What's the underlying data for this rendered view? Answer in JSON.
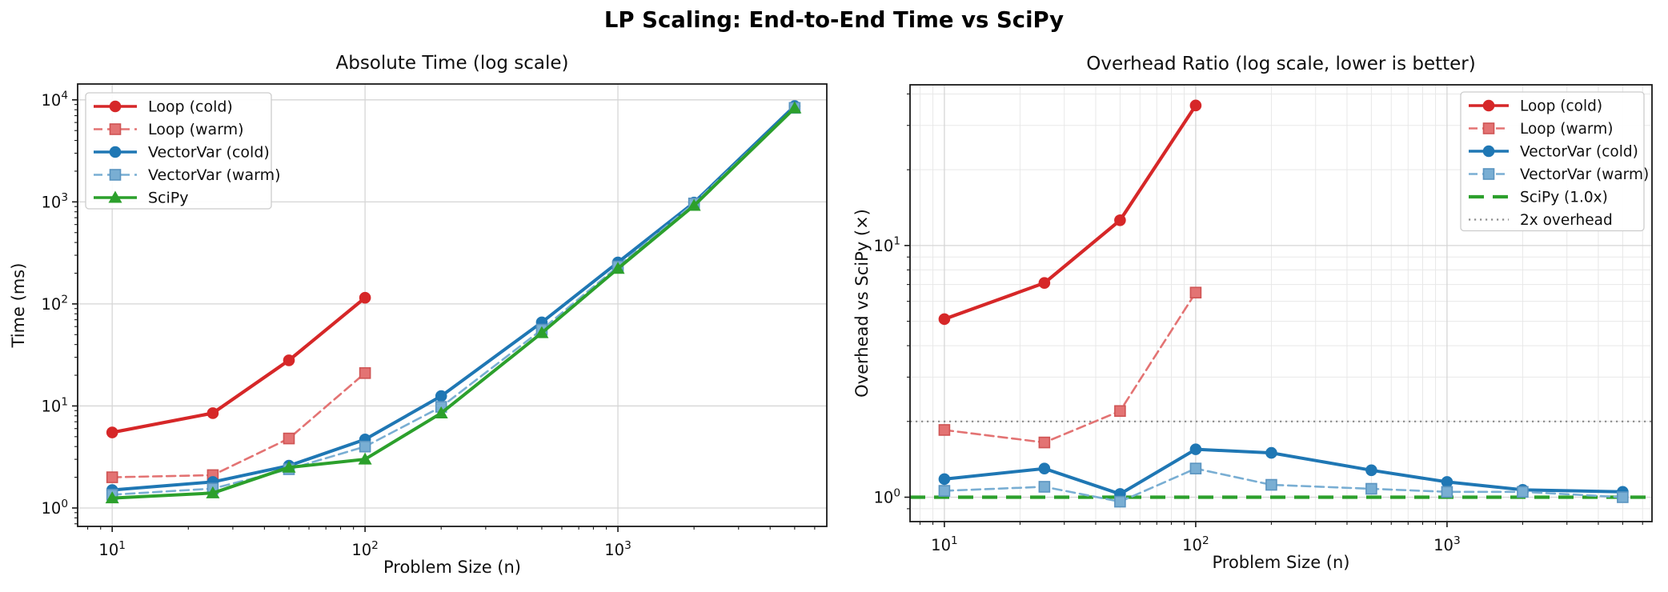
{
  "figure": {
    "title": "LP Scaling: End-to-End Time vs SciPy"
  },
  "palette": {
    "loop_cold": "#d62728",
    "loop_warm": "#e37373",
    "loop_warm_edge": "#cf5454",
    "vector_cold": "#1f77b4",
    "vector_warm": "#79aed3",
    "vector_warm_edge": "#5a94c0",
    "scipy_green": "#2ca02c",
    "ref_gray": "#8c8c8c",
    "grid_major": "#d6d6d6",
    "grid_minor": "#e8e8e8",
    "axis_color": "#1a1a1a",
    "text_color": "#0f0f0f",
    "legend_border": "#cccccc",
    "background": "#ffffff"
  },
  "chart_data": [
    {
      "type": "line",
      "title": "Absolute Time (log scale)",
      "xlabel": "Problem Size (n)",
      "ylabel": "Time (ms)",
      "xscale": "log",
      "yscale": "log",
      "xlim": [
        7.3,
        6700
      ],
      "ylim": [
        0.66,
        14300
      ],
      "xticks": [
        10,
        100,
        1000
      ],
      "yticks": [
        1,
        10,
        100,
        1000,
        10000
      ],
      "grid": "major",
      "legend_position": "upper-left",
      "series": [
        {
          "name": "Loop (cold)",
          "color": "loop_cold",
          "line": "solid",
          "marker": "circle",
          "width": 4.2,
          "x": [
            10,
            25,
            50,
            100
          ],
          "y": [
            5.5,
            8.5,
            28,
            115
          ]
        },
        {
          "name": "Loop (warm)",
          "color": "loop_warm",
          "edge": "loop_warm_edge",
          "line": "dashed",
          "marker": "square",
          "width": 2.6,
          "x": [
            10,
            25,
            50,
            100
          ],
          "y": [
            2.0,
            2.1,
            4.8,
            21
          ]
        },
        {
          "name": "VectorVar (cold)",
          "color": "vector_cold",
          "line": "solid",
          "marker": "circle",
          "width": 4.0,
          "x": [
            10,
            25,
            50,
            100,
            200,
            500,
            1000,
            2000,
            5000
          ],
          "y": [
            1.5,
            1.8,
            2.6,
            4.7,
            12.5,
            66,
            255,
            985,
            8700
          ]
        },
        {
          "name": "VectorVar (warm)",
          "color": "vector_warm",
          "edge": "vector_warm_edge",
          "line": "dashed",
          "marker": "square",
          "width": 2.6,
          "x": [
            10,
            25,
            50,
            100,
            200,
            500,
            1000,
            2000,
            5000
          ],
          "y": [
            1.35,
            1.55,
            2.4,
            4.0,
            9.8,
            56,
            233,
            965,
            8350
          ]
        },
        {
          "name": "SciPy",
          "color": "scipy_green",
          "line": "solid",
          "marker": "triangle",
          "width": 4.0,
          "x": [
            10,
            25,
            50,
            100,
            200,
            500,
            1000,
            2000,
            5000
          ],
          "y": [
            1.25,
            1.4,
            2.5,
            3.0,
            8.5,
            52,
            222,
            920,
            8300
          ]
        }
      ]
    },
    {
      "type": "line",
      "title": "Overhead Ratio (log scale, lower is better)",
      "xlabel": "Problem Size (n)",
      "ylabel": "Overhead vs SciPy (×)",
      "xscale": "log",
      "yscale": "log",
      "xlim": [
        7.3,
        6540
      ],
      "ylim": [
        0.8,
        43.5
      ],
      "xticks": [
        10,
        100,
        1000
      ],
      "yticks": [
        1,
        10
      ],
      "grid": "both",
      "legend_position": "upper-right",
      "series": [
        {
          "name": "Loop (cold)",
          "color": "loop_cold",
          "line": "solid",
          "marker": "circle",
          "width": 4.2,
          "x": [
            10,
            25,
            50,
            100
          ],
          "y": [
            5.1,
            7.1,
            12.6,
            36
          ]
        },
        {
          "name": "Loop (warm)",
          "color": "loop_warm",
          "edge": "loop_warm_edge",
          "line": "dashed",
          "marker": "square",
          "width": 2.6,
          "x": [
            10,
            25,
            50,
            100
          ],
          "y": [
            1.85,
            1.65,
            2.2,
            6.5
          ]
        },
        {
          "name": "VectorVar (cold)",
          "color": "vector_cold",
          "line": "solid",
          "marker": "circle",
          "width": 4.0,
          "x": [
            10,
            25,
            50,
            100,
            200,
            500,
            1000,
            2000,
            5000
          ],
          "y": [
            1.18,
            1.3,
            1.03,
            1.55,
            1.5,
            1.28,
            1.15,
            1.07,
            1.05
          ]
        },
        {
          "name": "VectorVar (warm)",
          "color": "vector_warm",
          "edge": "vector_warm_edge",
          "line": "dashed",
          "marker": "square",
          "width": 2.6,
          "x": [
            10,
            25,
            50,
            100,
            200,
            500,
            1000,
            2000,
            5000
          ],
          "y": [
            1.06,
            1.1,
            0.96,
            1.3,
            1.12,
            1.08,
            1.05,
            1.05,
            1.0
          ]
        }
      ],
      "reference_lines": [
        {
          "name": "SciPy (1.0x)",
          "value": 1.0,
          "color": "scipy_green",
          "style": "dashed-bold",
          "width": 4.2
        },
        {
          "name": "2x overhead",
          "value": 2.0,
          "color": "ref_gray",
          "style": "dotted",
          "width": 2.2
        }
      ]
    }
  ]
}
